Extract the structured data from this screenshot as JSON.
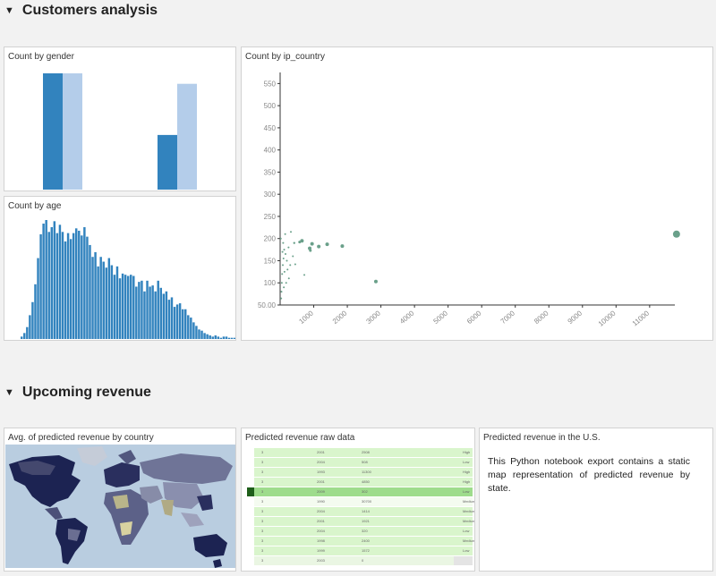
{
  "sections": {
    "customers": {
      "title": "Customers analysis"
    },
    "revenue": {
      "title": "Upcoming revenue"
    }
  },
  "tiles": {
    "gender": {
      "title": "Count by gender"
    },
    "age": {
      "title": "Count by age"
    },
    "country": {
      "title": "Count by ip_country"
    },
    "map": {
      "title": "Avg. of predicted revenue by country"
    },
    "raw": {
      "title": "Predicted revenue raw data"
    },
    "us": {
      "title": "Predicted revenue in the U.S.",
      "text": "This Python notebook export contains a static map representation of predicted revenue by state."
    }
  },
  "icons": {
    "collapse": "triangle-down-icon"
  },
  "colors": {
    "dark_blue": "#3283be",
    "light_blue": "#b4cdea",
    "scatter": "#6aa08a",
    "table_green": "#d9f5cc",
    "table_highlight": "#9edc8c"
  },
  "chart_data": [
    {
      "type": "bar",
      "title": "Count by gender",
      "categories": [
        "",
        ""
      ],
      "series": [
        {
          "values": [
            100,
            47
          ]
        },
        {
          "values": [
            100,
            91
          ]
        }
      ]
    },
    {
      "type": "bar",
      "title": "Count by age",
      "values": [
        2,
        5,
        10,
        20,
        31,
        46,
        68,
        88,
        97,
        100,
        90,
        94,
        99,
        89,
        96,
        90,
        82,
        89,
        84,
        89,
        93,
        91,
        87,
        94,
        86,
        79,
        69,
        73,
        61,
        69,
        65,
        60,
        68,
        62,
        54,
        61,
        51,
        55,
        54,
        53,
        54,
        53,
        44,
        48,
        49,
        40,
        49,
        44,
        45,
        40,
        49,
        43,
        38,
        40,
        33,
        35,
        27,
        29,
        30,
        25,
        25,
        20,
        18,
        14,
        11,
        8,
        7,
        5,
        4,
        3,
        2,
        3,
        2,
        1,
        2,
        2,
        1,
        1,
        1,
        1
      ]
    },
    {
      "type": "scatter",
      "title": "Count by ip_country",
      "xlim": [
        0,
        11750
      ],
      "ylim": [
        50,
        575
      ],
      "yticks": [
        "550",
        "500",
        "450",
        "400",
        "350",
        "300",
        "250",
        "200",
        "150",
        "100",
        "50.00"
      ],
      "xticks": [
        "1000",
        "2000",
        "3000",
        "4000",
        "5000",
        "6000",
        "7000",
        "8000",
        "9000",
        "10000",
        "11000"
      ],
      "points": [
        {
          "x": 11800,
          "y": 210,
          "s": 4
        },
        {
          "x": 2850,
          "y": 103,
          "s": 2
        },
        {
          "x": 1850,
          "y": 183,
          "s": 2
        },
        {
          "x": 1400,
          "y": 187,
          "s": 2
        },
        {
          "x": 1150,
          "y": 182,
          "s": 2
        },
        {
          "x": 950,
          "y": 188,
          "s": 2
        },
        {
          "x": 880,
          "y": 178,
          "s": 2
        },
        {
          "x": 650,
          "y": 195,
          "s": 2
        },
        {
          "x": 580,
          "y": 192,
          "s": 1.5
        },
        {
          "x": 900,
          "y": 173,
          "s": 1.5
        },
        {
          "x": 420,
          "y": 190,
          "s": 1.2
        },
        {
          "x": 380,
          "y": 160,
          "s": 1
        },
        {
          "x": 320,
          "y": 215,
          "s": 1
        },
        {
          "x": 250,
          "y": 180,
          "s": 1
        },
        {
          "x": 220,
          "y": 130,
          "s": 1
        },
        {
          "x": 720,
          "y": 118,
          "s": 1
        },
        {
          "x": 450,
          "y": 142,
          "s": 1
        },
        {
          "x": 150,
          "y": 210,
          "s": 1
        },
        {
          "x": 120,
          "y": 175,
          "s": 1
        },
        {
          "x": 100,
          "y": 155,
          "s": 1
        },
        {
          "x": 80,
          "y": 140,
          "s": 1
        },
        {
          "x": 60,
          "y": 120,
          "s": 1
        },
        {
          "x": 50,
          "y": 100,
          "s": 1
        },
        {
          "x": 40,
          "y": 80,
          "s": 1
        },
        {
          "x": 30,
          "y": 65,
          "s": 1
        },
        {
          "x": 20,
          "y": 200,
          "s": 1
        },
        {
          "x": 180,
          "y": 100,
          "s": 1
        },
        {
          "x": 300,
          "y": 140,
          "s": 1
        },
        {
          "x": 160,
          "y": 165,
          "s": 1
        },
        {
          "x": 90,
          "y": 190,
          "s": 1
        },
        {
          "x": 200,
          "y": 150,
          "s": 1
        },
        {
          "x": 130,
          "y": 125,
          "s": 1
        },
        {
          "x": 70,
          "y": 170,
          "s": 1
        },
        {
          "x": 110,
          "y": 90,
          "s": 1
        },
        {
          "x": 260,
          "y": 110,
          "s": 1
        }
      ]
    }
  ],
  "raw_table": {
    "rows": [
      [
        "3",
        "2001",
        "2508",
        "High"
      ],
      [
        "3",
        "2004",
        "508",
        "Low"
      ],
      [
        "3",
        "1993",
        "11300",
        "High"
      ],
      [
        "3",
        "2001",
        "4850",
        "High"
      ],
      [
        "3",
        "2009",
        "302",
        "Low"
      ],
      [
        "3",
        "1990",
        "30700",
        "Medium"
      ],
      [
        "3",
        "2004",
        "1414",
        "Medium"
      ],
      [
        "3",
        "2001",
        "1921",
        "Medium"
      ],
      [
        "3",
        "2004",
        "320",
        "Low"
      ],
      [
        "3",
        "1998",
        "2400",
        "Medium"
      ],
      [
        "3",
        "1999",
        "1572",
        "Low"
      ],
      [
        "3",
        "2003",
        "0",
        ""
      ]
    ]
  }
}
